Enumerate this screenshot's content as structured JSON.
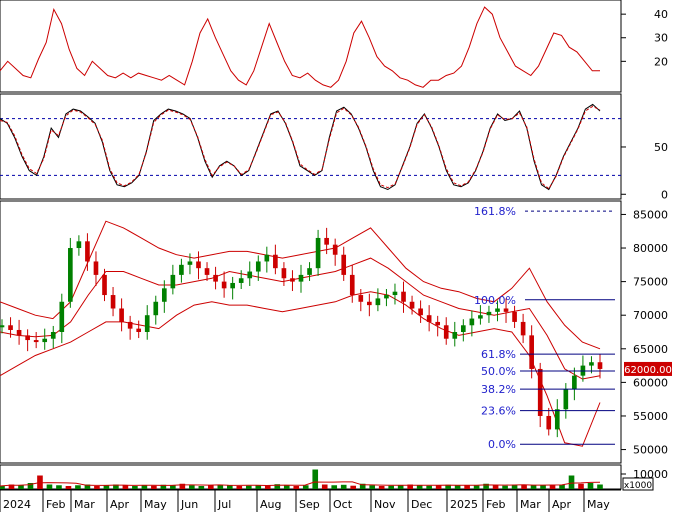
{
  "colors": {
    "background": "#ffffff",
    "frame": "#000000",
    "up_candle": "#008000",
    "down_candle": "#cc0000",
    "bands": "#cc0000",
    "adx_line": "#cc0000",
    "stoch_k": "#000000",
    "stoch_d": "#cc0000",
    "fib_line": "#000080",
    "fib_text": "#2222cc",
    "dashed_ref": "#0000aa",
    "price_badge_bg": "#cc0000",
    "price_badge_text": "#ffffff",
    "volume_up": "#008000",
    "volume_down": "#cc0000",
    "volume_ma": "#cc0000"
  },
  "price_badge": "62000.00",
  "volume_unit": "x1000",
  "x_labels": [
    "2024",
    "Feb",
    "Mar",
    "Apr",
    "May",
    "Jun",
    "Jul",
    "Aug",
    "Sep",
    "Oct",
    "Nov",
    "Dec",
    "2025",
    "Feb",
    "Mar",
    "Apr",
    "May"
  ],
  "chart_data": [
    {
      "type": "line",
      "panel": "adx-panel",
      "y_ticks": [
        20,
        30,
        40
      ],
      "ylim": [
        7,
        46
      ],
      "series": [
        {
          "values": [
            16,
            20,
            17,
            14,
            13,
            21,
            28,
            42,
            36,
            25,
            17,
            14,
            20,
            17,
            14,
            13,
            15,
            13,
            15,
            14,
            13,
            12,
            14,
            12,
            10,
            20,
            32,
            38,
            30,
            23,
            16,
            12,
            10,
            16,
            26,
            36,
            28,
            20,
            14,
            13,
            15,
            12,
            10,
            9,
            12,
            20,
            32,
            37,
            30,
            22,
            18,
            16,
            13,
            12,
            10,
            9,
            12,
            12,
            14,
            15,
            18,
            26,
            36,
            43,
            40,
            30,
            24,
            18,
            16,
            14,
            18,
            25,
            32,
            31,
            26,
            24,
            20,
            16,
            16
          ]
        }
      ]
    },
    {
      "type": "line",
      "panel": "stochastic-panel",
      "y_ticks": [
        0,
        50
      ],
      "ylim": [
        -5,
        106
      ],
      "reference_lines": [
        20,
        80
      ],
      "series": [
        {
          "values": [
            80,
            75,
            60,
            40,
            25,
            20,
            40,
            70,
            60,
            85,
            90,
            88,
            82,
            75,
            55,
            25,
            10,
            8,
            12,
            20,
            45,
            78,
            85,
            90,
            88,
            85,
            80,
            60,
            35,
            18,
            30,
            35,
            30,
            20,
            25,
            45,
            65,
            85,
            88,
            75,
            55,
            30,
            25,
            20,
            25,
            60,
            88,
            92,
            85,
            70,
            50,
            25,
            8,
            5,
            10,
            30,
            50,
            75,
            85,
            70,
            50,
            25,
            10,
            8,
            12,
            25,
            45,
            70,
            85,
            78,
            80,
            88,
            70,
            35,
            10,
            5,
            20,
            40,
            55,
            70,
            90,
            95,
            88
          ]
        },
        {
          "values": [
            78,
            76,
            62,
            42,
            27,
            22,
            38,
            68,
            62,
            83,
            89,
            87,
            81,
            74,
            57,
            27,
            12,
            9,
            13,
            21,
            44,
            76,
            84,
            89,
            87,
            84,
            79,
            61,
            37,
            20,
            29,
            34,
            30,
            21,
            26,
            44,
            64,
            84,
            87,
            76,
            56,
            32,
            26,
            21,
            26,
            58,
            86,
            91,
            84,
            71,
            51,
            27,
            10,
            7,
            11,
            29,
            49,
            74,
            84,
            71,
            51,
            27,
            12,
            9,
            13,
            26,
            44,
            69,
            84,
            79,
            80,
            86,
            71,
            37,
            12,
            6,
            19,
            39,
            54,
            69,
            88,
            93,
            89
          ]
        }
      ]
    },
    {
      "type": "candlestick",
      "panel": "price-panel",
      "y_ticks": [
        50000,
        55000,
        60000,
        65000,
        70000,
        75000,
        80000,
        85000
      ],
      "ylim": [
        48000,
        87000
      ],
      "price_series": [
        68500,
        67800,
        67000,
        66300,
        66000,
        66500,
        67500,
        72000,
        80000,
        81000,
        78000,
        76000,
        73000,
        71000,
        69000,
        68000,
        67500,
        70000,
        72000,
        74000,
        76000,
        77500,
        78000,
        77000,
        76000,
        75000,
        74000,
        74800,
        75500,
        76500,
        78000,
        79000,
        77000,
        75500,
        75000,
        76000,
        77000,
        81500,
        80500,
        79000,
        76000,
        73000,
        72000,
        71500,
        72500,
        73000,
        73500,
        72000,
        71000,
        70000,
        69000,
        68500,
        66500,
        67500,
        68500,
        69500,
        70000,
        70500,
        71000,
        70500,
        69000,
        67000,
        62000,
        55000,
        53000,
        56000,
        59000,
        61000,
        62500,
        63000,
        62000
      ],
      "bands": {
        "upper": [
          72000,
          71000,
          70000,
          69500,
          72000,
          78000,
          84000,
          83000,
          81500,
          80000,
          79000,
          78500,
          79000,
          79500,
          79500,
          79000,
          78500,
          79000,
          79500,
          80000,
          81500,
          83000,
          80000,
          77000,
          75000,
          74000,
          73500,
          72500,
          72000,
          74000,
          77000,
          72000,
          68500,
          66000,
          65000
        ],
        "middle": [
          67500,
          67000,
          66800,
          67000,
          69000,
          73000,
          76500,
          76500,
          75500,
          74500,
          74500,
          75000,
          75500,
          76500,
          76000,
          75500,
          75000,
          75500,
          76000,
          76500,
          77500,
          78500,
          77000,
          75000,
          73000,
          72000,
          71000,
          70500,
          70000,
          70500,
          71000,
          67000,
          62000,
          60500,
          61000
        ],
        "lower": [
          61000,
          62500,
          64000,
          65000,
          66000,
          67500,
          69000,
          69000,
          68500,
          68000,
          70000,
          71500,
          72000,
          71500,
          71500,
          71000,
          70500,
          71000,
          71500,
          72000,
          73000,
          73500,
          73000,
          71500,
          69500,
          68000,
          67000,
          67500,
          68000,
          67500,
          64000,
          58000,
          51000,
          50500,
          57000
        ]
      },
      "fibonacci": [
        {
          "label": "161.8%",
          "value": 85500
        },
        {
          "label": "100.0%",
          "value": 72300
        },
        {
          "label": "61.8%",
          "value": 64200
        },
        {
          "label": "50.0%",
          "value": 61700
        },
        {
          "label": "38.2%",
          "value": 59000
        },
        {
          "label": "23.6%",
          "value": 55800
        },
        {
          "label": "0.0%",
          "value": 50800
        }
      ],
      "last_price": 62000
    },
    {
      "type": "bar",
      "panel": "volume-panel",
      "y_ticks": [
        10000
      ],
      "ylim": [
        0,
        16000
      ],
      "values": [
        2000,
        3000,
        2500,
        4000,
        9000,
        3000,
        2500,
        2000,
        2500,
        3000,
        2000,
        2500,
        3000,
        2500,
        2000,
        2500,
        2200,
        2800,
        2500,
        3500,
        2500,
        2000,
        2500,
        3000,
        2500,
        2000,
        2200,
        2600,
        2400,
        3200,
        2500,
        2000,
        2500,
        13000,
        3000,
        2500,
        2800,
        2200,
        3500,
        2500,
        2000,
        2200,
        2600,
        3000,
        2500,
        2200,
        2500,
        2800,
        2400,
        2600,
        2300,
        3500,
        2500,
        2200,
        2800,
        3000,
        2600,
        2400,
        2500,
        3000,
        9000,
        3500,
        4000,
        3000
      ]
    }
  ]
}
